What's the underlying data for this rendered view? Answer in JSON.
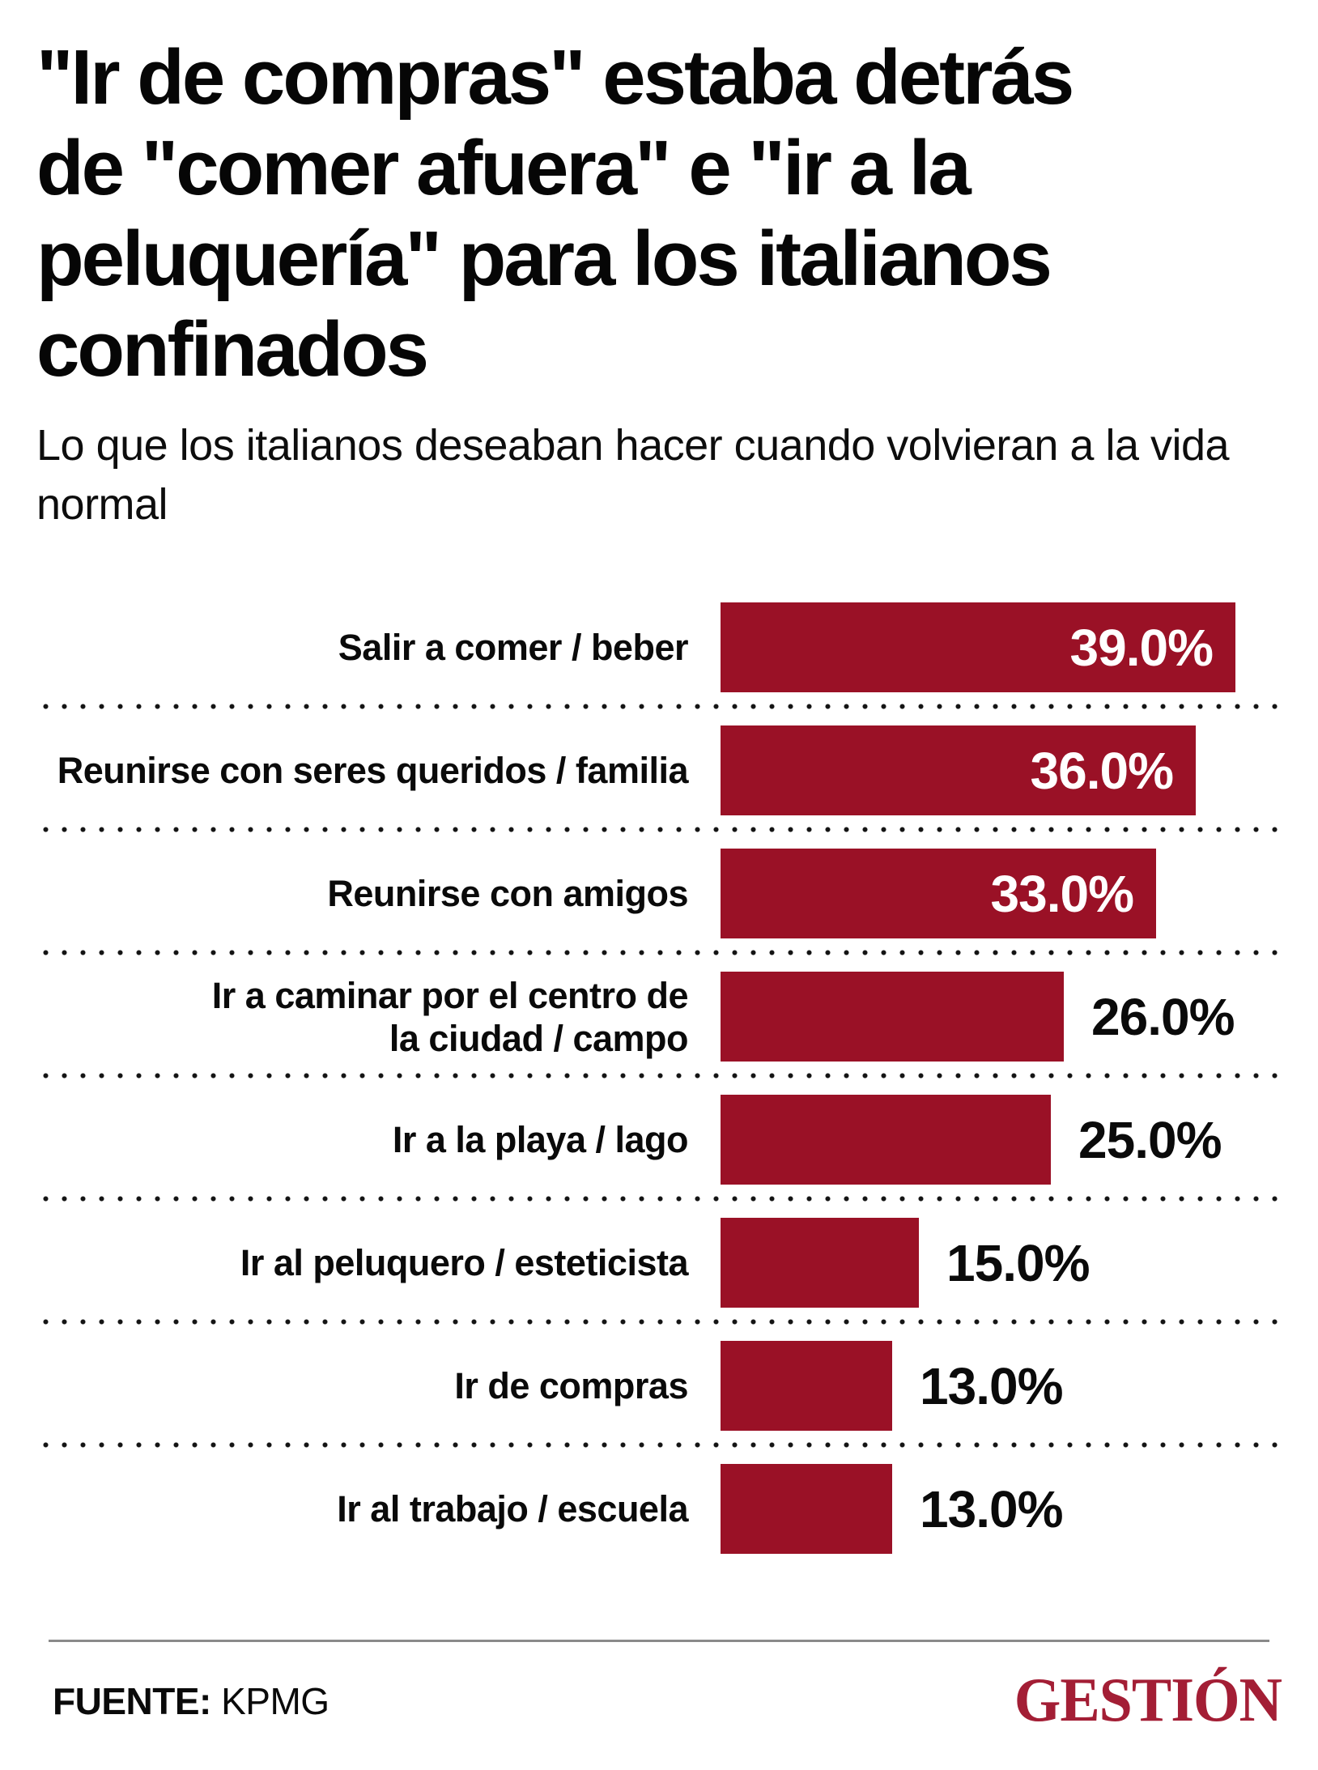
{
  "title_lines": [
    "\"Ir de compras\" estaba detrás",
    "de \"comer afuera\" e \"ir a la",
    "peluquería\" para los italianos",
    "confinados"
  ],
  "subtitle": "Lo que los italianos deseaban hacer cuando volvieran a la vida normal",
  "rows": [
    {
      "label": "Salir a comer / beber",
      "value": 39,
      "value_label": "39.0%"
    },
    {
      "label": "Reunirse con seres queridos / familia",
      "value": 36,
      "value_label": "36.0%"
    },
    {
      "label": "Reunirse con amigos",
      "value": 33,
      "value_label": "33.0%"
    },
    {
      "label": "Ir a caminar por el centro de\nla ciudad / campo",
      "value": 26,
      "value_label": "26.0%"
    },
    {
      "label": "Ir a la playa / lago",
      "value": 25,
      "value_label": "25.0%"
    },
    {
      "label": "Ir al peluquero / esteticista",
      "value": 15,
      "value_label": "15.0%"
    },
    {
      "label": "Ir de compras",
      "value": 13,
      "value_label": "13.0%"
    },
    {
      "label": "Ir al trabajo / escuela",
      "value": 13,
      "value_label": "13.0%"
    }
  ],
  "chart_data": {
    "type": "bar",
    "orientation": "horizontal",
    "title": "\"Ir de compras\" estaba detrás de \"comer afuera\" e \"ir a la peluquería\" para los italianos confinados",
    "subtitle": "Lo que los italianos deseaban hacer cuando volvieran a la vida normal",
    "categories": [
      "Salir a comer / beber",
      "Reunirse con seres queridos / familia",
      "Reunirse con amigos",
      "Ir a caminar por el centro de la ciudad / campo",
      "Ir a la playa / lago",
      "Ir al peluquero / esteticista",
      "Ir de compras",
      "Ir al trabajo / escuela"
    ],
    "values": [
      39.0,
      36.0,
      33.0,
      26.0,
      25.0,
      15.0,
      13.0,
      13.0
    ],
    "unit": "%",
    "value_labels": [
      "39.0%",
      "36.0%",
      "33.0%",
      "26.0%",
      "25.0%",
      "15.0%",
      "13.0%",
      "13.0%"
    ],
    "xlim": [
      0,
      42.5
    ],
    "grid": false,
    "legend": false,
    "bar_color": "#9A1126",
    "row_separator_style": "dotted"
  },
  "footer": {
    "source_label": "FUENTE:",
    "source_value": "KPMG",
    "brand": "GESTIÓN"
  },
  "colors": {
    "bar": "#9A1126",
    "brand_red": "#A31E35",
    "divider_gray": "#8a8a8a",
    "dot_black": "#141414",
    "text_black": "#060606"
  }
}
